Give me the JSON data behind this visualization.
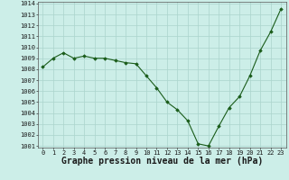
{
  "x": [
    0,
    1,
    2,
    3,
    4,
    5,
    6,
    7,
    8,
    9,
    10,
    11,
    12,
    13,
    14,
    15,
    16,
    17,
    18,
    19,
    20,
    21,
    22,
    23
  ],
  "y": [
    1008.2,
    1009.0,
    1009.5,
    1009.0,
    1009.2,
    1009.0,
    1009.0,
    1008.8,
    1008.6,
    1008.5,
    1007.4,
    1006.3,
    1005.0,
    1004.3,
    1003.3,
    1001.2,
    1001.0,
    1002.8,
    1004.5,
    1005.5,
    1007.4,
    1009.7,
    1011.4,
    1013.5
  ],
  "ylim_min": 1001,
  "ylim_max": 1014,
  "yticks": [
    1001,
    1002,
    1003,
    1004,
    1005,
    1006,
    1007,
    1008,
    1009,
    1010,
    1011,
    1012,
    1013,
    1014
  ],
  "xticks": [
    0,
    1,
    2,
    3,
    4,
    5,
    6,
    7,
    8,
    9,
    10,
    11,
    12,
    13,
    14,
    15,
    16,
    17,
    18,
    19,
    20,
    21,
    22,
    23
  ],
  "xlabel": "Graphe pression niveau de la mer (hPa)",
  "line_color": "#1a5c1a",
  "marker": "D",
  "marker_size": 1.8,
  "bg_color": "#cceee8",
  "grid_color": "#aad4cc",
  "tick_fontsize": 5.0,
  "xlabel_fontsize": 7.0,
  "label_color": "#1a1a1a"
}
